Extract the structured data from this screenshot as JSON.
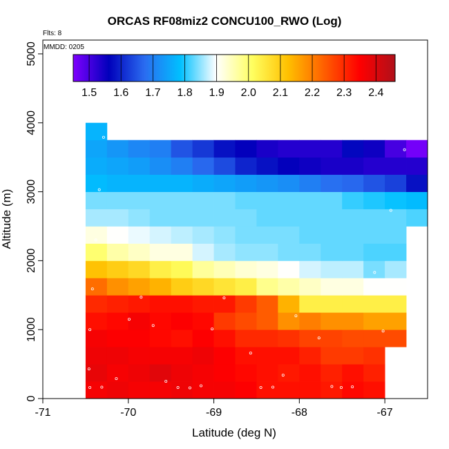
{
  "chart_data": {
    "type": "heatmap",
    "title": "ORCAS RF08miz2 CONCU100_RWO (Log)",
    "annotations": [
      "Flts: 8",
      "MMDD: 0205"
    ],
    "xlabel": "Latitude (deg N)",
    "ylabel": "Altitude (m)",
    "xlim": [
      -71,
      -66.5
    ],
    "ylim": [
      0,
      5200
    ],
    "xticks": [
      -71,
      -70,
      -69,
      -68,
      -67
    ],
    "yticks": [
      0,
      1000,
      2000,
      3000,
      4000,
      5000
    ],
    "colorbar": {
      "range": [
        1.45,
        2.46
      ],
      "ticks": [
        1.5,
        1.6,
        1.7,
        1.8,
        1.9,
        2.0,
        2.1,
        2.2,
        2.3,
        2.4
      ],
      "colors": [
        "#7f00ff",
        "#0000bb",
        "#2a6cf0",
        "#00c0ff",
        "#ffffff",
        "#ffff60",
        "#ffc000",
        "#ff6000",
        "#ff0000",
        "#b0101a"
      ]
    },
    "grid": false,
    "lat_bins": [
      -70.5,
      -70.25,
      -70.0,
      -69.75,
      -69.5,
      -69.25,
      -69.0,
      -68.75,
      -68.5,
      -68.25,
      -68.0,
      -67.75,
      -67.5,
      -67.25,
      -67.0,
      -66.75
    ],
    "alt_bin_size": 250,
    "cells": [
      {
        "alt": 0,
        "lat_start": -70.5,
        "values": [
          2.36,
          2.37,
          2.36,
          2.36,
          2.37,
          2.36,
          2.36,
          2.35,
          2.33,
          2.33,
          2.33,
          2.32,
          2.34,
          2.33
        ]
      },
      {
        "alt": 250,
        "lat_start": -70.5,
        "values": [
          2.38,
          2.36,
          2.37,
          2.39,
          2.37,
          2.36,
          2.35,
          2.34,
          2.33,
          2.32,
          2.33,
          2.31,
          2.33,
          2.31
        ]
      },
      {
        "alt": 500,
        "lat_start": -70.5,
        "values": [
          2.37,
          2.37,
          2.36,
          2.36,
          2.36,
          2.37,
          2.35,
          2.33,
          2.33,
          2.33,
          2.31,
          2.28,
          2.28,
          2.29
        ]
      },
      {
        "alt": 750,
        "lat_start": -70.5,
        "values": [
          2.36,
          2.35,
          2.35,
          2.34,
          2.33,
          2.35,
          2.33,
          2.3,
          2.3,
          2.29,
          2.27,
          2.27,
          2.26,
          2.26,
          2.26
        ]
      },
      {
        "alt": 1000,
        "lat_start": -70.5,
        "values": [
          2.33,
          2.34,
          2.36,
          2.34,
          2.35,
          2.34,
          2.28,
          2.26,
          2.24,
          2.18,
          2.2,
          2.18,
          2.18,
          2.16,
          2.16
        ]
      },
      {
        "alt": 1250,
        "lat_start": -70.5,
        "values": [
          2.3,
          2.31,
          2.32,
          2.33,
          2.33,
          2.32,
          2.32,
          2.28,
          2.24,
          2.14,
          2.04,
          2.04,
          2.04,
          2.04,
          2.04
        ]
      },
      {
        "alt": 1500,
        "lat_start": -70.5,
        "values": [
          2.22,
          2.18,
          2.16,
          2.14,
          2.1,
          2.08,
          2.06,
          2.04,
          1.98,
          1.96,
          1.94,
          1.92,
          1.92,
          1.9,
          1.9
        ]
      },
      {
        "alt": 1750,
        "lat_start": -70.5,
        "values": [
          2.12,
          2.1,
          2.08,
          2.04,
          2.02,
          1.97,
          1.95,
          1.93,
          1.92,
          1.9,
          1.88,
          1.87,
          1.87,
          1.84,
          1.86
        ]
      },
      {
        "alt": 2000,
        "lat_start": -70.5,
        "values": [
          2.0,
          1.96,
          1.94,
          1.92,
          1.92,
          1.88,
          1.86,
          1.85,
          1.85,
          1.84,
          1.84,
          1.83,
          1.83,
          1.82,
          1.82
        ]
      },
      {
        "alt": 2250,
        "lat_start": -70.5,
        "values": [
          1.92,
          1.9,
          1.89,
          1.88,
          1.87,
          1.86,
          1.85,
          1.84,
          1.84,
          1.84,
          1.83,
          1.83,
          1.83,
          1.83,
          1.83
        ]
      },
      {
        "alt": 2500,
        "lat_start": -70.5,
        "values": [
          1.86,
          1.86,
          1.85,
          1.84,
          1.84,
          1.84,
          1.84,
          1.84,
          1.83,
          1.83,
          1.83,
          1.83,
          1.83,
          1.83,
          1.83,
          1.82
        ]
      },
      {
        "alt": 2750,
        "lat_start": -70.5,
        "values": [
          1.84,
          1.84,
          1.84,
          1.84,
          1.84,
          1.84,
          1.84,
          1.83,
          1.83,
          1.83,
          1.83,
          1.83,
          1.81,
          1.8,
          1.79,
          1.78
        ]
      },
      {
        "alt": 3000,
        "lat_start": -70.5,
        "values": [
          1.78,
          1.77,
          1.77,
          1.77,
          1.77,
          1.76,
          1.75,
          1.74,
          1.73,
          1.72,
          1.7,
          1.68,
          1.67,
          1.65,
          1.63,
          1.58
        ]
      },
      {
        "alt": 3250,
        "lat_start": -70.5,
        "values": [
          1.76,
          1.75,
          1.74,
          1.72,
          1.7,
          1.67,
          1.64,
          1.6,
          1.58,
          1.56,
          1.55,
          1.54,
          1.54,
          1.53,
          1.53,
          1.53
        ]
      },
      {
        "alt": 3500,
        "lat_start": -70.5,
        "values": [
          1.75,
          1.73,
          1.71,
          1.7,
          1.65,
          1.62,
          1.58,
          1.56,
          1.54,
          1.53,
          1.53,
          1.53,
          1.57,
          1.55,
          1.5,
          1.46
        ]
      },
      {
        "alt": 3750,
        "lat_start": -70.5,
        "values": [
          1.77
        ]
      }
    ],
    "samples": [
      [
        -70.45,
        160
      ],
      [
        -70.31,
        165
      ],
      [
        -70.14,
        290
      ],
      [
        -69.56,
        250
      ],
      [
        -69.42,
        160
      ],
      [
        -69.28,
        155
      ],
      [
        -69.15,
        185
      ],
      [
        -68.45,
        160
      ],
      [
        -68.31,
        165
      ],
      [
        -67.62,
        175
      ],
      [
        -67.51,
        160
      ],
      [
        -67.38,
        170
      ],
      [
        -70.46,
        430
      ],
      [
        -68.19,
        340
      ],
      [
        -68.57,
        660
      ],
      [
        -70.45,
        1000
      ],
      [
        -69.99,
        1150
      ],
      [
        -69.71,
        1060
      ],
      [
        -69.02,
        1010
      ],
      [
        -67.77,
        880
      ],
      [
        -67.02,
        980
      ],
      [
        -68.04,
        1200
      ],
      [
        -70.42,
        1590
      ],
      [
        -69.85,
        1470
      ],
      [
        -68.88,
        1460
      ],
      [
        -67.12,
        1830
      ],
      [
        -70.38,
        2300
      ],
      [
        -70.34,
        3030
      ],
      [
        -66.93,
        2730
      ],
      [
        -70.29,
        3790
      ],
      [
        -66.77,
        3610
      ]
    ]
  }
}
